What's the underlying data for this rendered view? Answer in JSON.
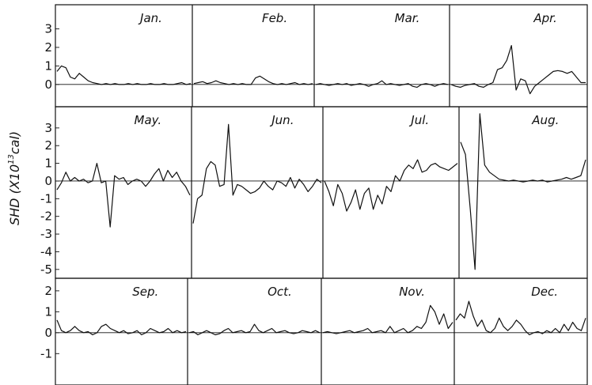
{
  "chart_data": {
    "type": "line",
    "ylabel": "SHD (X10",
    "ylabel_exponent": "13",
    "ylabel_unit": "cal)",
    "panels": [
      {
        "ylim": [
          -1.2,
          4.3
        ],
        "yticks": [
          "3",
          "2",
          "1",
          "0"
        ],
        "ytick_values": [
          3,
          2,
          1,
          0
        ],
        "months": [
          {
            "name": "Jan.",
            "values": [
              0.7,
              1.0,
              0.9,
              0.4,
              0.3,
              0.6,
              0.4,
              0.2,
              0.1,
              0.05,
              0.0,
              0.05,
              0.0,
              0.05,
              0.0,
              0.0,
              0.05,
              0.0,
              0.05,
              0.0,
              0.0,
              0.05,
              0.0,
              0.0,
              0.05,
              0.0,
              0.0,
              0.05,
              0.1,
              0.0,
              0.05
            ]
          },
          {
            "name": "Feb.",
            "values": [
              0.05,
              0.1,
              0.15,
              0.05,
              0.1,
              0.2,
              0.1,
              0.05,
              0.0,
              0.05,
              0.0,
              0.05,
              0.0,
              0.0,
              0.35,
              0.45,
              0.3,
              0.15,
              0.05,
              0.0,
              0.05,
              0.0,
              0.05,
              0.1,
              0.0,
              0.05,
              0.0,
              0.05
            ]
          },
          {
            "name": "Mar.",
            "values": [
              0.0,
              0.05,
              0.0,
              -0.05,
              0.0,
              0.05,
              0.0,
              0.05,
              -0.05,
              0.0,
              0.05,
              0.0,
              -0.1,
              0.0,
              0.05,
              0.2,
              0.0,
              0.05,
              0.0,
              -0.05,
              0.0,
              0.05,
              -0.1,
              -0.15,
              0.0,
              0.05,
              0.0,
              -0.1,
              0.0,
              0.05,
              0.0
            ]
          },
          {
            "name": "Apr.",
            "values": [
              0.0,
              -0.1,
              -0.15,
              -0.05,
              0.0,
              0.05,
              -0.1,
              -0.15,
              0.0,
              0.1,
              0.8,
              0.9,
              1.3,
              2.1,
              -0.3,
              0.3,
              0.2,
              -0.5,
              -0.1,
              0.1,
              0.3,
              0.5,
              0.7,
              0.75,
              0.7,
              0.6,
              0.7,
              0.4,
              0.1,
              0.1
            ]
          }
        ]
      },
      {
        "ylim": [
          -5.5,
          4.2
        ],
        "yticks": [
          "3",
          "2",
          "1",
          "0",
          "-1",
          "-2",
          "-3",
          "-4",
          "-5"
        ],
        "ytick_values": [
          3,
          2,
          1,
          0,
          -1,
          -2,
          -3,
          -4,
          -5
        ],
        "months": [
          {
            "name": "May.",
            "values": [
              -0.5,
              -0.1,
              0.5,
              0.0,
              0.2,
              0.0,
              0.1,
              -0.1,
              0.0,
              1.0,
              -0.1,
              0.0,
              -2.6,
              0.3,
              0.1,
              0.2,
              -0.2,
              0.0,
              0.1,
              0.0,
              -0.3,
              0.0,
              0.4,
              0.7,
              0.0,
              0.6,
              0.2,
              0.5,
              0.0,
              -0.3,
              -0.8
            ]
          },
          {
            "name": "Jun.",
            "values": [
              -2.4,
              -1.0,
              -0.8,
              0.7,
              1.1,
              0.9,
              -0.3,
              -0.2,
              3.2,
              -0.8,
              -0.2,
              -0.3,
              -0.5,
              -0.7,
              -0.6,
              -0.4,
              0.0,
              -0.3,
              -0.5,
              0.0,
              -0.1,
              -0.3,
              0.2,
              -0.4,
              0.1,
              -0.2,
              -0.6,
              -0.3,
              0.1,
              -0.1
            ]
          },
          {
            "name": "Jul.",
            "values": [
              0.0,
              -0.6,
              -1.4,
              -0.2,
              -0.7,
              -1.7,
              -1.2,
              -0.5,
              -1.6,
              -0.7,
              -0.4,
              -1.6,
              -0.8,
              -1.3,
              -0.3,
              -0.6,
              0.3,
              0.0,
              0.6,
              0.9,
              0.7,
              1.2,
              0.5,
              0.6,
              0.9,
              1.0,
              0.8,
              0.7,
              0.6,
              0.8,
              1.0
            ]
          },
          {
            "name": "Aug.",
            "values": [
              2.2,
              1.5,
              -1.6,
              -5.0,
              3.8,
              0.9,
              0.5,
              0.3,
              0.1,
              0.05,
              0.0,
              0.05,
              0.0,
              -0.05,
              0.0,
              0.05,
              0.0,
              0.05,
              -0.05,
              0.0,
              0.05,
              0.1,
              0.2,
              0.1,
              0.2,
              0.3,
              1.2
            ]
          }
        ]
      },
      {
        "ylim": [
          -2.5,
          2.6
        ],
        "yticks": [
          "2",
          "1",
          "0",
          "-1"
        ],
        "ytick_values": [
          2,
          1,
          0,
          -1
        ],
        "months": [
          {
            "name": "Sep.",
            "values": [
              0.6,
              0.1,
              0.0,
              0.1,
              0.3,
              0.1,
              0.0,
              0.05,
              -0.1,
              0.0,
              0.3,
              0.4,
              0.2,
              0.1,
              0.0,
              0.1,
              -0.05,
              0.0,
              0.1,
              -0.1,
              0.0,
              0.2,
              0.1,
              0.0,
              0.05,
              0.2,
              0.0,
              0.1,
              0.0,
              0.05
            ]
          },
          {
            "name": "Oct.",
            "values": [
              0.0,
              0.05,
              -0.1,
              0.0,
              0.1,
              0.0,
              -0.1,
              -0.05,
              0.1,
              0.2,
              0.0,
              0.05,
              0.1,
              0.0,
              0.05,
              0.4,
              0.1,
              0.0,
              0.1,
              0.2,
              0.0,
              0.05,
              0.1,
              0.0,
              -0.05,
              0.0,
              0.1,
              0.05,
              0.0,
              0.1,
              0.0
            ]
          },
          {
            "name": "Nov.",
            "values": [
              0.0,
              0.05,
              0.0,
              -0.05,
              0.0,
              0.05,
              0.1,
              0.0,
              0.05,
              0.1,
              0.2,
              0.0,
              0.05,
              0.1,
              0.0,
              0.3,
              0.0,
              0.1,
              0.2,
              0.0,
              0.1,
              0.3,
              0.2,
              0.5,
              1.3,
              1.0,
              0.4,
              0.9,
              0.2,
              0.5
            ]
          },
          {
            "name": "Dec.",
            "values": [
              0.6,
              0.9,
              0.7,
              1.5,
              0.8,
              0.3,
              0.6,
              0.1,
              0.0,
              0.2,
              0.7,
              0.3,
              0.1,
              0.3,
              0.6,
              0.4,
              0.1,
              -0.1,
              0.0,
              0.05,
              -0.05,
              0.1,
              0.0,
              0.2,
              0.0,
              0.4,
              0.1,
              0.5,
              0.2,
              0.1,
              0.7
            ]
          }
        ]
      }
    ]
  }
}
